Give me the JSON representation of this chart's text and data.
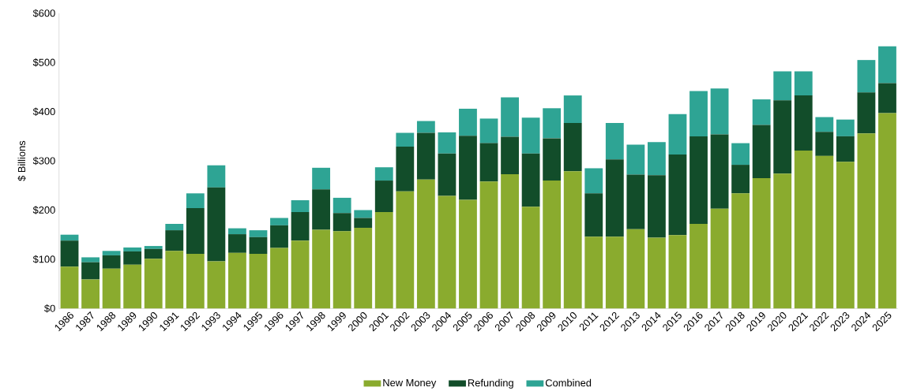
{
  "chart_data": {
    "type": "bar",
    "stacked": true,
    "ylabel": "$ Billions",
    "categories": [
      "1986",
      "1987",
      "1988",
      "1989",
      "1990",
      "1991",
      "1992",
      "1993",
      "1994",
      "1995",
      "1996",
      "1997",
      "1998",
      "1999",
      "2000",
      "2001",
      "2002",
      "2003",
      "2004",
      "2005",
      "2006",
      "2007",
      "2008",
      "2009",
      "2010",
      "2011",
      "2012",
      "2013",
      "2014",
      "2015",
      "2016",
      "2017",
      "2018",
      "2019",
      "2020",
      "2021",
      "2022",
      "2023",
      "2024",
      "2025"
    ],
    "series": [
      {
        "name": "New Money",
        "color": "#8aab2e",
        "values": [
          85,
          59,
          81,
          89,
          101,
          117,
          111,
          96,
          113,
          111,
          123,
          138,
          160,
          157,
          164,
          196,
          238,
          262,
          229,
          221,
          258,
          273,
          207,
          260,
          279,
          146,
          146,
          161,
          144,
          149,
          172,
          203,
          234,
          265,
          274,
          321,
          310,
          298,
          356,
          397
        ]
      },
      {
        "name": "Refunding",
        "color": "#124d2a",
        "values": [
          53,
          35,
          27,
          27,
          20,
          42,
          93,
          150,
          38,
          34,
          46,
          58,
          82,
          37,
          20,
          64,
          91,
          95,
          86,
          130,
          78,
          76,
          108,
          86,
          98,
          88,
          157,
          111,
          127,
          164,
          178,
          151,
          58,
          108,
          149,
          112,
          49,
          52,
          83,
          61
        ]
      },
      {
        "name": "Combined",
        "color": "#2ea494",
        "values": [
          12,
          10,
          9,
          8,
          6,
          13,
          30,
          45,
          12,
          14,
          15,
          24,
          44,
          31,
          16,
          27,
          28,
          24,
          43,
          55,
          50,
          80,
          73,
          61,
          56,
          51,
          74,
          61,
          67,
          82,
          92,
          93,
          44,
          52,
          59,
          49,
          30,
          34,
          66,
          75
        ]
      }
    ],
    "ylim": [
      0,
      600
    ],
    "yticks": [
      {
        "value": 0,
        "label": "$0"
      },
      {
        "value": 100,
        "label": "$100"
      },
      {
        "value": 200,
        "label": "$200"
      },
      {
        "value": 300,
        "label": "$300"
      },
      {
        "value": 400,
        "label": "$400"
      },
      {
        "value": 500,
        "label": "$500"
      },
      {
        "value": 600,
        "label": "$600"
      }
    ],
    "grid": false,
    "legend": "bottom"
  }
}
